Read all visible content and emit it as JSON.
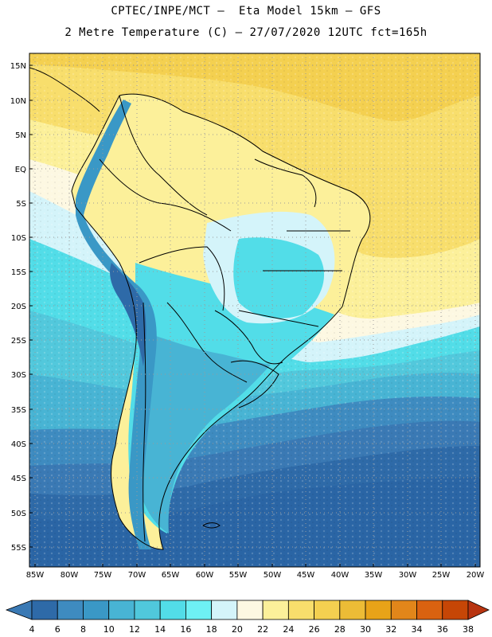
{
  "title_line1": "CPTEC/INPE/MCT –  Eta Model 15km – GFS",
  "title_line2": "2 Metre Temperature (C) – 27/07/2020 12UTC fct=165h",
  "lat_labels": [
    "15N",
    "10N",
    "5N",
    "EQ",
    "5S",
    "10S",
    "15S",
    "20S",
    "25S",
    "30S",
    "35S",
    "40S",
    "45S",
    "50S",
    "55S"
  ],
  "lon_labels": [
    "85W",
    "80W",
    "75W",
    "70W",
    "65W",
    "60W",
    "55W",
    "50W",
    "45W",
    "40W",
    "35W",
    "30W",
    "25W",
    "20W"
  ],
  "colorbar": {
    "labels": [
      "4",
      "6",
      "8",
      "10",
      "12",
      "14",
      "16",
      "18",
      "20",
      "22",
      "24",
      "26",
      "28",
      "30",
      "32",
      "34",
      "36",
      "38"
    ],
    "colors": [
      "#3a79b4",
      "#2e6aa8",
      "#3e8bc0",
      "#3a98c6",
      "#48b4d4",
      "#50c8dc",
      "#52dde8",
      "#6ef0f4",
      "#d4f4fa",
      "#fdf8e2",
      "#fcf09a",
      "#f8de6c",
      "#f4d050",
      "#ecbc36",
      "#e8a318",
      "#e2861a",
      "#da6210",
      "#c64606",
      "#b83410"
    ]
  },
  "colors": {
    "ocean_cold": "#2a65a5",
    "ocean_mid": "#3c8ec4",
    "ocean_cool": "#4ec6dc",
    "ocean_mild": "#d4f4fa",
    "tropical_warm": "#f4d050",
    "land_hot": "#fcf09a",
    "andes": "#3a98c6",
    "boundary": "#000000"
  }
}
